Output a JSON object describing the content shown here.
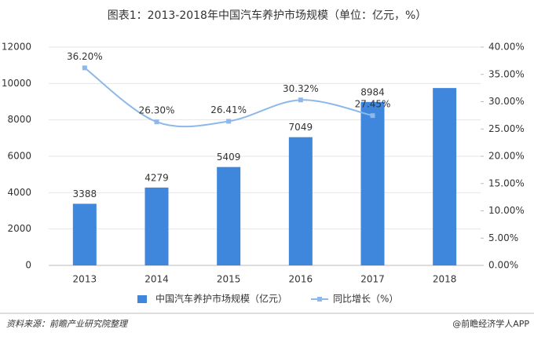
{
  "chart_data": {
    "type": "bar_line",
    "title": "图表1：2013-2018年中国汽车养护市场规模（单位：亿元，%）",
    "categories": [
      "2013",
      "2014",
      "2015",
      "2016",
      "2017",
      "2018"
    ],
    "series": [
      {
        "name": "中国汽车养护市场规模（亿元）",
        "color": "#3f86dd",
        "values": [
          3388,
          4279,
          5409,
          7049,
          8984,
          9750
        ],
        "value_labels": [
          "3388",
          "4279",
          "5409",
          "7049",
          "8984",
          null
        ]
      },
      {
        "name": "同比增长（%）",
        "color": "#8db8ea",
        "axis": "y2",
        "values": [
          36.2,
          26.3,
          26.41,
          30.32,
          27.45,
          null
        ],
        "value_labels": [
          "36.20%",
          "26.30%",
          "26.41%",
          "30.32%",
          "27.45%",
          null
        ]
      }
    ],
    "ylim": [
      0,
      12000
    ],
    "yticks": [
      0,
      2000,
      4000,
      6000,
      8000,
      10000,
      12000
    ],
    "y2lim": [
      0,
      40
    ],
    "y2ticks": [
      {
        "value": 0,
        "label": "0.00%"
      },
      {
        "value": 5,
        "label": "5.00%"
      },
      {
        "value": 10,
        "label": "10.00%"
      },
      {
        "value": 15,
        "label": "15.00%"
      },
      {
        "value": 20,
        "label": "20.00%"
      },
      {
        "value": 25,
        "label": "25.00%"
      },
      {
        "value": 30,
        "label": "30.00%"
      },
      {
        "value": 35,
        "label": "35.00%"
      },
      {
        "value": 40,
        "label": "40.00%"
      }
    ],
    "legend": "bottom",
    "source": "资料来源：前瞻产业研究院整理",
    "credit": "@前瞻经济学人APP"
  }
}
